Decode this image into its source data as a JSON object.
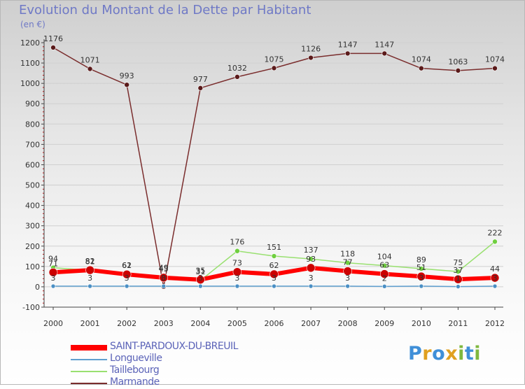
{
  "chart_data": {
    "type": "line",
    "title": "Evolution du Montant de la Dette par Habitant",
    "ylabel": "(en €)",
    "xlabel": "",
    "ylim": [
      -100,
      1200
    ],
    "yticks": [
      -100,
      0,
      100,
      200,
      300,
      400,
      500,
      600,
      700,
      800,
      900,
      1000,
      1100,
      1200
    ],
    "categories": [
      "2000",
      "2001",
      "2002",
      "2003",
      "2004",
      "2005",
      "2006",
      "2007",
      "2008",
      "2009",
      "2010",
      "2011",
      "2012"
    ],
    "series": [
      {
        "name": "SAINT-PARDOUX-DU-BREUIL",
        "color": "#ff0000",
        "values": [
          71,
          82,
          61,
          45,
          35,
          73,
          62,
          93,
          77,
          63,
          51,
          37,
          44
        ],
        "labels": [
          "71",
          "82",
          "61",
          "45",
          "35",
          "73",
          "62",
          "93",
          "77",
          "63",
          "51",
          "37",
          "44"
        ]
      },
      {
        "name": "Longueville",
        "color": "#5f9fcf",
        "values": [
          3,
          3,
          3,
          3,
          3,
          3,
          3,
          3,
          3,
          2,
          3,
          1,
          3
        ],
        "labels": [
          "3",
          "3",
          "3",
          "3",
          "3",
          "3",
          "3",
          "3",
          "3",
          "2",
          "3",
          "1",
          "3"
        ]
      },
      {
        "name": "Taillebourg",
        "color": "#99e070",
        "values": [
          94,
          81,
          62,
          49,
          31,
          176,
          151,
          137,
          118,
          104,
          89,
          75,
          222
        ],
        "labels": [
          "94",
          "81",
          "62",
          "49",
          "31",
          "176",
          "151",
          "137",
          "118",
          "104",
          "89",
          "75",
          "222"
        ]
      },
      {
        "name": "Marmande",
        "color": "#7a2d2d",
        "values": [
          1176,
          1071,
          993,
          0,
          977,
          1032,
          1075,
          1126,
          1147,
          1147,
          1074,
          1063,
          1074
        ],
        "labels": [
          "1176",
          "1071",
          "993",
          "0",
          "977",
          "1032",
          "1075",
          "1126",
          "1147",
          "1147",
          "1074",
          "1063",
          "1074"
        ]
      }
    ]
  },
  "brand": {
    "letters": [
      "P",
      "r",
      "o",
      "x",
      "i",
      "t",
      "i"
    ],
    "colors": [
      "#3f8fd8",
      "#e0a020",
      "#3f8fd8",
      "#e0a020",
      "#7fb83f",
      "#3f8fd8",
      "#7fb83f"
    ]
  }
}
